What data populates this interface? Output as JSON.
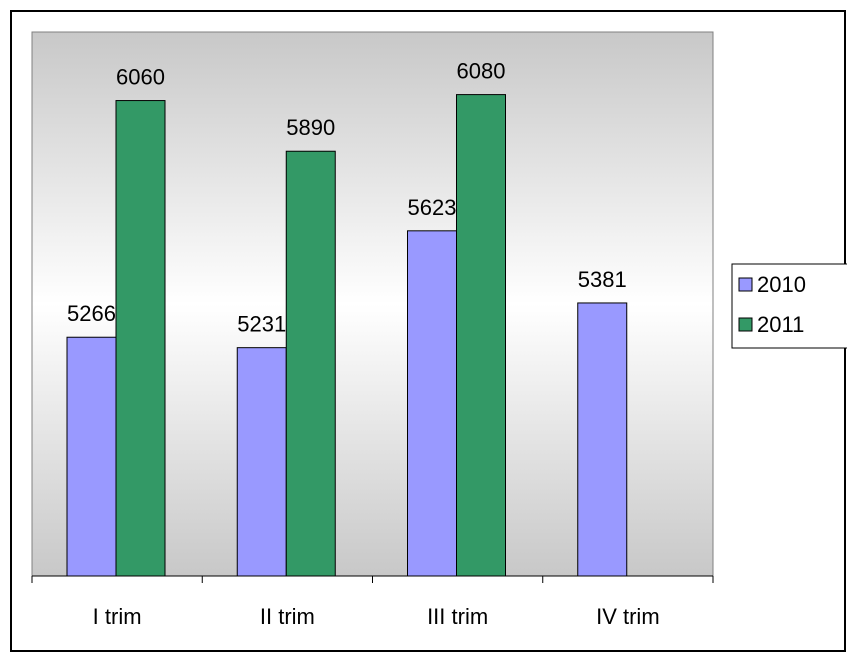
{
  "chart_data": {
    "type": "bar",
    "categories": [
      "I trim",
      "II trim",
      "III trim",
      "IV trim"
    ],
    "series": [
      {
        "name": "2010",
        "color": "#9999ff",
        "values": [
          5266,
          5231,
          5623,
          5381
        ]
      },
      {
        "name": "2011",
        "color": "#339966",
        "values": [
          6060,
          5890,
          6080,
          null
        ]
      }
    ],
    "ylim": [
      4465,
      6290
    ],
    "data_labels": true,
    "grid": false,
    "legend": "right",
    "title": "",
    "xlabel": "",
    "ylabel": ""
  }
}
